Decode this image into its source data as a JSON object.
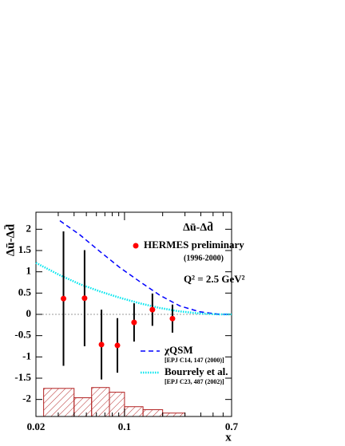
{
  "chart_data": {
    "type": "errorbar",
    "y_label": "Δū-Δd̄",
    "x_label": "x",
    "annotation": "Δū-Δd̄",
    "q2_label": "Q² = 2.5 GeV²",
    "xlim": [
      0.02,
      0.7
    ],
    "ylim": [
      -2.4,
      2.4
    ],
    "log_x": true,
    "xticks": [
      0.02,
      0.1,
      0.7
    ],
    "xminor_ticks": [
      0.03,
      0.04,
      0.05,
      0.06,
      0.07,
      0.08,
      0.09,
      0.2,
      0.3,
      0.4,
      0.5,
      0.6
    ],
    "yticks": [
      2,
      1.5,
      1,
      0.5,
      0,
      -0.5,
      -1,
      -1.5,
      -2
    ],
    "zero_line": true,
    "series": [
      {
        "name": "HERMES preliminary",
        "period": "(1996-2000)",
        "color": "#ff0000",
        "x": [
          0.033,
          0.0484,
          0.0658,
          0.0879,
          0.119,
          0.166,
          0.239
        ],
        "values": [
          0.37,
          0.38,
          -0.71,
          -0.73,
          -0.19,
          0.11,
          -0.1
        ],
        "errors": [
          1.58,
          1.13,
          0.82,
          0.64,
          0.45,
          0.38,
          0.33
        ]
      }
    ],
    "curves": [
      {
        "name": "χQSM",
        "reference": "[EPJ C14, 147 (2000)]",
        "color": "#0000ff",
        "style": "dashed",
        "x": [
          0.0309,
          0.0444,
          0.0638,
          0.0918,
          0.1319,
          0.1896,
          0.2725,
          0.392,
          0.563,
          0.7
        ],
        "values": [
          2.2,
          1.87,
          1.48,
          1.1,
          0.77,
          0.45,
          0.2,
          0.06,
          0,
          0
        ]
      },
      {
        "name": "Bourrely et al.",
        "reference": "[EPJ C23, 487 (2002)]",
        "color": "#00e5ee",
        "style": "dotted",
        "x": [
          0.02,
          0.0309,
          0.0444,
          0.0638,
          0.0918,
          0.1319,
          0.1896,
          0.2725,
          0.392,
          0.563,
          0.7
        ],
        "values": [
          1.21,
          0.92,
          0.71,
          0.54,
          0.39,
          0.26,
          0.15,
          0.07,
          0.02,
          0,
          0
        ]
      }
    ],
    "systematic_band": {
      "color": "#b22222",
      "bins": [
        0.023,
        0.04,
        0.055,
        0.076,
        0.1,
        0.14,
        0.2,
        0.3
      ],
      "values": [
        -1.74,
        -1.96,
        -1.72,
        -1.83,
        -2.17,
        -2.24,
        -2.32
      ]
    }
  }
}
